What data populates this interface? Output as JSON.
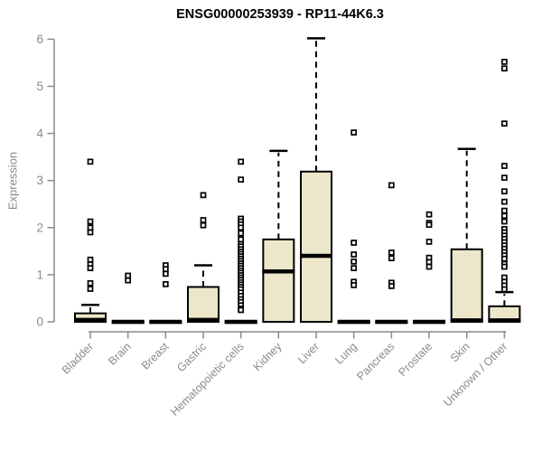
{
  "page": {
    "background": "#ffffff"
  },
  "chart_data": {
    "type": "boxplot",
    "title": "ENSG00000253939 - RP11-44K6.3",
    "ylabel": "Expression",
    "xlabel": "",
    "ylim": [
      0,
      6
    ],
    "yticks": [
      0,
      1,
      2,
      3,
      4,
      5,
      6
    ],
    "grid": false,
    "legend": "none",
    "categories": [
      "Bladder",
      "Brain",
      "Breast",
      "Gastric",
      "Hematopoietic cells",
      "Kidney",
      "Liver",
      "Lung",
      "Pancreas",
      "Prostate",
      "Skin",
      "Unknown / Other"
    ],
    "series": [
      {
        "category": "Bladder",
        "q1": 0,
        "median": 0.04,
        "q3": 0.18,
        "whisker_low": 0,
        "whisker_high": 0.36,
        "outliers": [
          3.4,
          2.13,
          2.0,
          1.9,
          1.32,
          1.22,
          1.14,
          0.82,
          0.7
        ]
      },
      {
        "category": "Brain",
        "q1": 0,
        "median": 0,
        "q3": 0,
        "whisker_low": 0,
        "whisker_high": 0,
        "outliers": [
          0.98,
          0.88
        ]
      },
      {
        "category": "Breast",
        "q1": 0,
        "median": 0,
        "q3": 0,
        "whisker_low": 0,
        "whisker_high": 0,
        "outliers": [
          1.2,
          1.12,
          1.02,
          0.8
        ]
      },
      {
        "category": "Gastric",
        "q1": 0,
        "median": 0.04,
        "q3": 0.74,
        "whisker_low": 0,
        "whisker_high": 1.2,
        "outliers": [
          2.69,
          2.16,
          2.05
        ]
      },
      {
        "category": "Hematopoietic cells",
        "q1": 0,
        "median": 0,
        "q3": 0,
        "whisker_low": 0,
        "whisker_high": 0,
        "outliers": [
          3.4,
          3.02,
          2.19,
          2.13,
          2.07,
          2.0,
          1.88,
          1.75,
          1.65,
          1.6,
          1.54,
          1.49,
          1.44,
          1.39,
          1.34,
          1.29,
          1.24,
          1.19,
          1.14,
          1.09,
          1.04,
          0.99,
          0.94,
          0.89,
          0.84,
          0.79,
          0.74,
          0.69,
          0.62,
          0.55,
          0.48,
          0.42,
          0.35,
          0.28,
          0.25
        ]
      },
      {
        "category": "Kidney",
        "q1": 0,
        "median": 1.07,
        "q3": 1.75,
        "whisker_low": 0,
        "whisker_high": 3.63,
        "outliers": []
      },
      {
        "category": "Liver",
        "q1": 0,
        "median": 1.4,
        "q3": 3.19,
        "whisker_low": 0,
        "whisker_high": 6.02,
        "outliers": []
      },
      {
        "category": "Lung",
        "q1": 0,
        "median": 0,
        "q3": 0,
        "whisker_low": 0,
        "whisker_high": 0,
        "outliers": [
          4.02,
          1.68,
          1.43,
          1.28,
          1.14,
          0.85,
          0.78
        ]
      },
      {
        "category": "Pancreas",
        "q1": 0,
        "median": 0,
        "q3": 0,
        "whisker_low": 0,
        "whisker_high": 0,
        "outliers": [
          2.9,
          1.47,
          1.35,
          0.83,
          0.76
        ]
      },
      {
        "category": "Prostate",
        "q1": 0,
        "median": 0,
        "q3": 0,
        "whisker_low": 0,
        "whisker_high": 0,
        "outliers": [
          2.28,
          2.1,
          2.06,
          1.7,
          1.36,
          1.27,
          1.17
        ]
      },
      {
        "category": "Skin",
        "q1": 0,
        "median": 0.03,
        "q3": 1.54,
        "whisker_low": 0,
        "whisker_high": 3.67,
        "outliers": []
      },
      {
        "category": "Unknown / Other",
        "q1": 0,
        "median": 0.03,
        "q3": 0.33,
        "whisker_low": 0,
        "whisker_high": 0.63,
        "outliers": [
          5.52,
          5.38,
          4.21,
          3.31,
          3.06,
          2.77,
          2.55,
          2.36,
          2.25,
          2.13,
          1.97,
          1.9,
          1.83,
          1.76,
          1.69,
          1.62,
          1.55,
          1.48,
          1.41,
          1.34,
          1.23,
          1.17,
          0.94,
          0.85,
          0.77,
          0.69
        ]
      }
    ],
    "colors": {
      "box_fill": "#ece7ca",
      "box_stroke": "#000000",
      "median": "#000000",
      "outlier_stroke": "#000000",
      "outlier_fill": "#ffffff",
      "axis": "#8a8a8a",
      "tick_text": "#8a8a8a",
      "title_text": "#000000"
    }
  }
}
